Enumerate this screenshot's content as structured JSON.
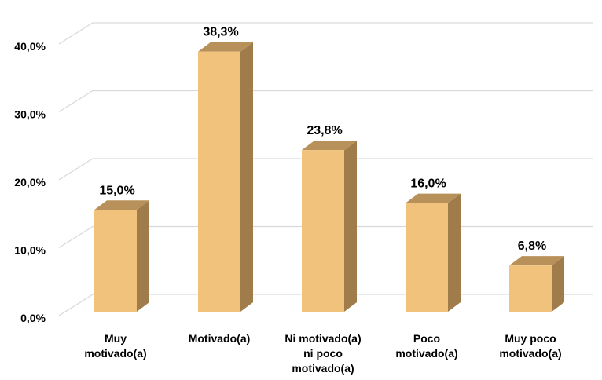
{
  "chart_data": {
    "type": "bar3d",
    "categories": [
      "Muy motivado(a)",
      "Motivado(a)",
      "Ni motivado(a) ni poco motivado(a)",
      "Poco motivado(a)",
      "Muy poco motivado(a)"
    ],
    "values": [
      15.0,
      38.3,
      23.8,
      16.0,
      6.8
    ],
    "value_labels": [
      "15,0%",
      "38,3%",
      "23,8%",
      "16,0%",
      "6,8%"
    ],
    "color": "#f0c27b",
    "ylim": [
      0,
      40
    ],
    "yticks": [
      {
        "value": 0,
        "label": "0,0%"
      },
      {
        "value": 10,
        "label": "10,0%"
      },
      {
        "value": 20,
        "label": "20,0%"
      },
      {
        "value": 30,
        "label": "30,0%"
      },
      {
        "value": 40,
        "label": "40,0%"
      }
    ],
    "grid": true
  }
}
